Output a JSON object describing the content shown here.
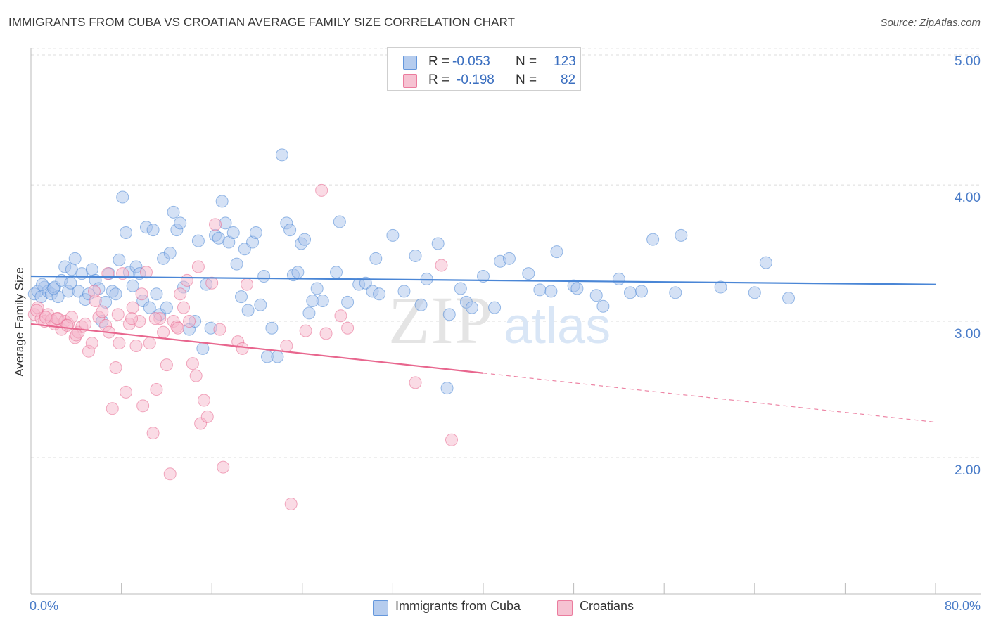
{
  "header": {
    "title": "IMMIGRANTS FROM CUBA VS CROATIAN AVERAGE FAMILY SIZE CORRELATION CHART",
    "source": "Source: ZipAtlas.com"
  },
  "watermark": {
    "zip": "ZIP",
    "atlas": "atlas"
  },
  "legend_top": {
    "rows": [
      {
        "r_label": "R =",
        "r_value": "-0.053",
        "n_label": "N =",
        "n_value": "123",
        "color": "#a9c4ec"
      },
      {
        "r_label": "R =",
        "r_value": "-0.198",
        "n_label": "N =",
        "n_value": "82",
        "color": "#f5b8cb"
      }
    ]
  },
  "legend_bottom": {
    "items": [
      {
        "label": "Immigrants from Cuba",
        "color": "#a9c4ec"
      },
      {
        "label": "Croatians",
        "color": "#f5b8cb"
      }
    ]
  },
  "chart_data": {
    "type": "scatter",
    "ylabel": "Average Family Size",
    "x_tick_labels": [
      "0.0%",
      "80.0%"
    ],
    "y_tick_labels": [
      "2.00",
      "3.00",
      "4.00",
      "5.00"
    ],
    "xlim": [
      0,
      80
    ],
    "ylim": [
      1.0,
      5.15
    ],
    "y_ticks": [
      2.0,
      3.0,
      4.0,
      5.0
    ],
    "grid": "horizontal dashed",
    "series": [
      {
        "name": "Immigrants from Cuba",
        "color": "#4a86d6",
        "fill": "#a9c4ec",
        "trend": {
          "x0": 0,
          "y0": 3.33,
          "x1": 80,
          "y1": 3.27,
          "dashed_from": null
        },
        "points": [
          [
            0.3,
            3.2
          ],
          [
            0.6,
            3.22
          ],
          [
            0.9,
            3.18
          ],
          [
            1.2,
            3.25
          ],
          [
            1.5,
            3.22
          ],
          [
            1.8,
            3.2
          ],
          [
            2.1,
            3.25
          ],
          [
            2.4,
            3.18
          ],
          [
            2.7,
            3.3
          ],
          [
            3.0,
            3.4
          ],
          [
            3.3,
            3.22
          ],
          [
            3.6,
            3.38
          ],
          [
            3.9,
            3.46
          ],
          [
            4.2,
            3.22
          ],
          [
            4.5,
            3.35
          ],
          [
            4.8,
            3.16
          ],
          [
            5.1,
            3.2
          ],
          [
            5.4,
            3.38
          ],
          [
            5.7,
            3.3
          ],
          [
            6.0,
            3.24
          ],
          [
            6.3,
            3.0
          ],
          [
            6.6,
            3.14
          ],
          [
            6.9,
            3.35
          ],
          [
            7.2,
            3.22
          ],
          [
            7.5,
            3.2
          ],
          [
            7.8,
            3.45
          ],
          [
            8.1,
            3.91
          ],
          [
            8.4,
            3.65
          ],
          [
            8.7,
            3.36
          ],
          [
            9.0,
            3.26
          ],
          [
            9.3,
            3.4
          ],
          [
            9.6,
            3.35
          ],
          [
            9.9,
            3.15
          ],
          [
            10.2,
            3.69
          ],
          [
            10.5,
            3.1
          ],
          [
            10.8,
            3.67
          ],
          [
            11.1,
            3.2
          ],
          [
            11.4,
            3.05
          ],
          [
            11.7,
            3.46
          ],
          [
            12.0,
            3.1
          ],
          [
            12.3,
            3.5
          ],
          [
            12.6,
            3.8
          ],
          [
            12.9,
            3.67
          ],
          [
            13.2,
            3.72
          ],
          [
            13.5,
            3.25
          ],
          [
            14.0,
            2.94
          ],
          [
            14.5,
            3.0
          ],
          [
            14.8,
            3.59
          ],
          [
            15.2,
            2.8
          ],
          [
            15.5,
            3.27
          ],
          [
            15.9,
            2.95
          ],
          [
            16.3,
            3.63
          ],
          [
            16.6,
            3.61
          ],
          [
            16.9,
            3.88
          ],
          [
            17.2,
            3.72
          ],
          [
            17.5,
            3.58
          ],
          [
            17.9,
            3.65
          ],
          [
            18.2,
            3.42
          ],
          [
            18.6,
            3.18
          ],
          [
            18.9,
            3.53
          ],
          [
            19.2,
            3.08
          ],
          [
            19.6,
            3.58
          ],
          [
            19.9,
            3.65
          ],
          [
            20.3,
            3.12
          ],
          [
            20.6,
            3.33
          ],
          [
            20.9,
            2.74
          ],
          [
            21.3,
            2.95
          ],
          [
            21.8,
            2.74
          ],
          [
            22.2,
            4.22
          ],
          [
            22.6,
            3.72
          ],
          [
            22.9,
            3.67
          ],
          [
            23.2,
            3.34
          ],
          [
            23.6,
            3.36
          ],
          [
            23.9,
            3.57
          ],
          [
            24.2,
            3.6
          ],
          [
            24.6,
            3.06
          ],
          [
            24.9,
            3.15
          ],
          [
            25.3,
            3.24
          ],
          [
            25.8,
            3.15
          ],
          [
            27.0,
            3.36
          ],
          [
            27.3,
            3.73
          ],
          [
            28.0,
            3.14
          ],
          [
            29.0,
            3.27
          ],
          [
            29.6,
            3.28
          ],
          [
            30.2,
            3.22
          ],
          [
            30.5,
            3.46
          ],
          [
            30.8,
            3.2
          ],
          [
            32.0,
            3.63
          ],
          [
            33.0,
            3.22
          ],
          [
            34.0,
            3.48
          ],
          [
            34.5,
            3.12
          ],
          [
            35.0,
            3.31
          ],
          [
            36.0,
            3.57
          ],
          [
            37.0,
            3.05
          ],
          [
            38.0,
            3.24
          ],
          [
            38.5,
            3.14
          ],
          [
            39.0,
            3.1
          ],
          [
            40.0,
            3.33
          ],
          [
            41.0,
            3.1
          ],
          [
            41.5,
            3.44
          ],
          [
            42.3,
            3.46
          ],
          [
            44.0,
            3.35
          ],
          [
            45.0,
            3.23
          ],
          [
            46.0,
            3.22
          ],
          [
            46.5,
            3.51
          ],
          [
            48.0,
            3.26
          ],
          [
            48.3,
            3.24
          ],
          [
            50.0,
            3.19
          ],
          [
            50.6,
            3.11
          ],
          [
            52.0,
            3.31
          ],
          [
            53.0,
            3.21
          ],
          [
            54.0,
            3.22
          ],
          [
            55.0,
            3.6
          ],
          [
            57.0,
            3.21
          ],
          [
            57.5,
            3.63
          ],
          [
            61.0,
            3.25
          ],
          [
            64.0,
            3.21
          ],
          [
            65.0,
            3.43
          ],
          [
            67.0,
            3.17
          ],
          [
            36.8,
            2.51
          ],
          [
            1.0,
            3.27
          ],
          [
            2.0,
            3.24
          ],
          [
            3.5,
            3.28
          ]
        ]
      },
      {
        "name": "Croatians",
        "color": "#e8668e",
        "fill": "#f5b8cb",
        "trend": {
          "x0": 0,
          "y0": 2.98,
          "x1": 80,
          "y1": 2.26,
          "dashed_from": 40
        },
        "points": [
          [
            0.3,
            3.05
          ],
          [
            0.6,
            3.1
          ],
          [
            0.9,
            3.02
          ],
          [
            1.2,
            3.0
          ],
          [
            1.5,
            3.05
          ],
          [
            1.8,
            3.01
          ],
          [
            2.1,
            2.98
          ],
          [
            2.4,
            3.02
          ],
          [
            2.7,
            2.94
          ],
          [
            3.0,
            3.0
          ],
          [
            3.3,
            2.98
          ],
          [
            3.6,
            3.03
          ],
          [
            3.9,
            2.88
          ],
          [
            4.2,
            2.92
          ],
          [
            4.5,
            2.96
          ],
          [
            4.8,
            2.98
          ],
          [
            5.1,
            2.78
          ],
          [
            5.4,
            2.84
          ],
          [
            5.7,
            3.15
          ],
          [
            6.0,
            3.03
          ],
          [
            6.3,
            3.07
          ],
          [
            6.6,
            2.97
          ],
          [
            6.9,
            2.92
          ],
          [
            7.2,
            2.36
          ],
          [
            7.5,
            2.66
          ],
          [
            7.8,
            2.84
          ],
          [
            8.1,
            3.35
          ],
          [
            8.4,
            2.48
          ],
          [
            8.7,
            2.98
          ],
          [
            9.0,
            3.1
          ],
          [
            9.3,
            2.82
          ],
          [
            9.6,
            3.0
          ],
          [
            9.9,
            2.38
          ],
          [
            10.2,
            3.36
          ],
          [
            10.5,
            2.84
          ],
          [
            10.8,
            2.18
          ],
          [
            11.1,
            2.5
          ],
          [
            11.4,
            3.02
          ],
          [
            11.7,
            2.92
          ],
          [
            12.0,
            2.68
          ],
          [
            12.3,
            1.88
          ],
          [
            12.6,
            3.0
          ],
          [
            12.9,
            2.96
          ],
          [
            13.2,
            3.2
          ],
          [
            13.5,
            3.1
          ],
          [
            13.8,
            3.3
          ],
          [
            14.0,
            3.0
          ],
          [
            14.3,
            2.69
          ],
          [
            14.6,
            2.6
          ],
          [
            15.0,
            2.25
          ],
          [
            15.3,
            2.42
          ],
          [
            15.6,
            2.3
          ],
          [
            16.0,
            3.28
          ],
          [
            16.3,
            3.71
          ],
          [
            16.7,
            2.94
          ],
          [
            17.0,
            1.93
          ],
          [
            18.3,
            2.85
          ],
          [
            18.7,
            2.8
          ],
          [
            19.1,
            3.27
          ],
          [
            22.6,
            2.82
          ],
          [
            23.0,
            1.66
          ],
          [
            24.3,
            2.93
          ],
          [
            25.7,
            3.96
          ],
          [
            26.1,
            2.91
          ],
          [
            27.4,
            3.04
          ],
          [
            28.0,
            2.95
          ],
          [
            34.0,
            2.55
          ],
          [
            36.3,
            3.41
          ],
          [
            37.2,
            2.13
          ],
          [
            0.5,
            3.08
          ],
          [
            1.3,
            3.03
          ],
          [
            2.3,
            3.02
          ],
          [
            3.2,
            2.97
          ],
          [
            4.0,
            2.9
          ],
          [
            5.6,
            3.22
          ],
          [
            6.8,
            3.35
          ],
          [
            7.7,
            3.05
          ],
          [
            8.9,
            3.02
          ],
          [
            9.8,
            3.2
          ],
          [
            11.0,
            3.02
          ],
          [
            13.0,
            2.95
          ],
          [
            14.8,
            3.4
          ]
        ]
      }
    ]
  }
}
